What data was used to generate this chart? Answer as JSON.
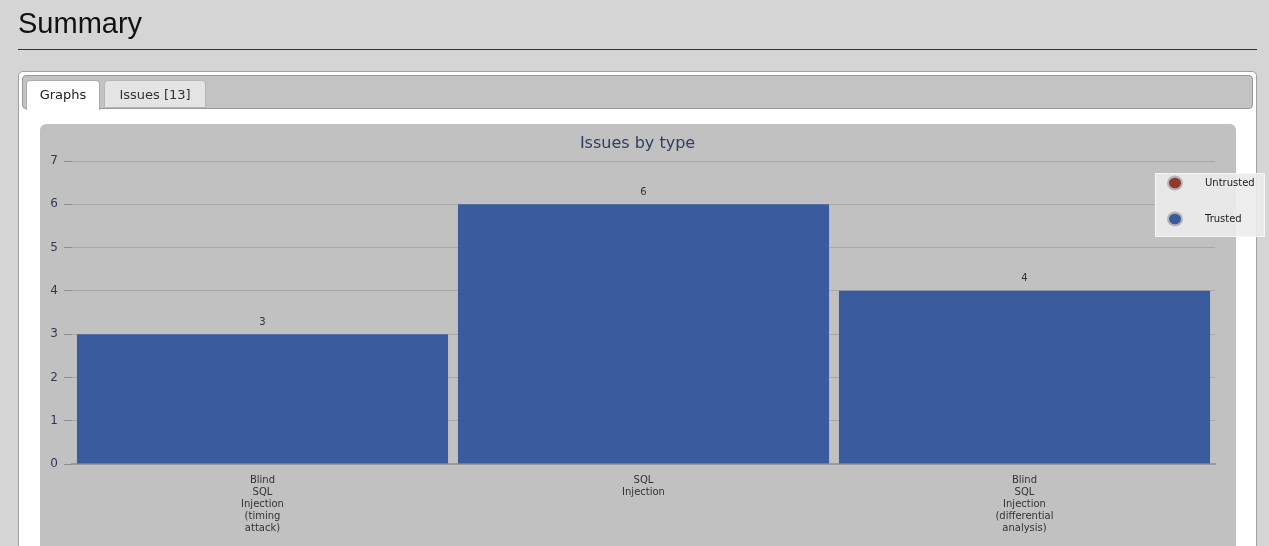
{
  "chart_data": {
    "type": "bar",
    "title": "Issues by type",
    "annotations": [
      "Summary",
      "Graphs",
      "Issues [13]"
    ],
    "categories": [
      "Blind SQL Injection (timing attack)",
      "SQL Injection",
      "Blind SQL Injection (differential analysis)"
    ],
    "series": [
      {
        "name": "Untrusted",
        "color": "#8e3b2c",
        "values": [
          null,
          null,
          null
        ]
      },
      {
        "name": "Trusted",
        "color": "#3a5c9f",
        "values": [
          3,
          6,
          4
        ]
      }
    ],
    "stacked": true,
    "ylim": [
      0,
      7
    ],
    "yticks": [
      0,
      1,
      2,
      3,
      4,
      5,
      6,
      7
    ],
    "grid": "y",
    "legend": "top right",
    "data_labels": true
  }
}
